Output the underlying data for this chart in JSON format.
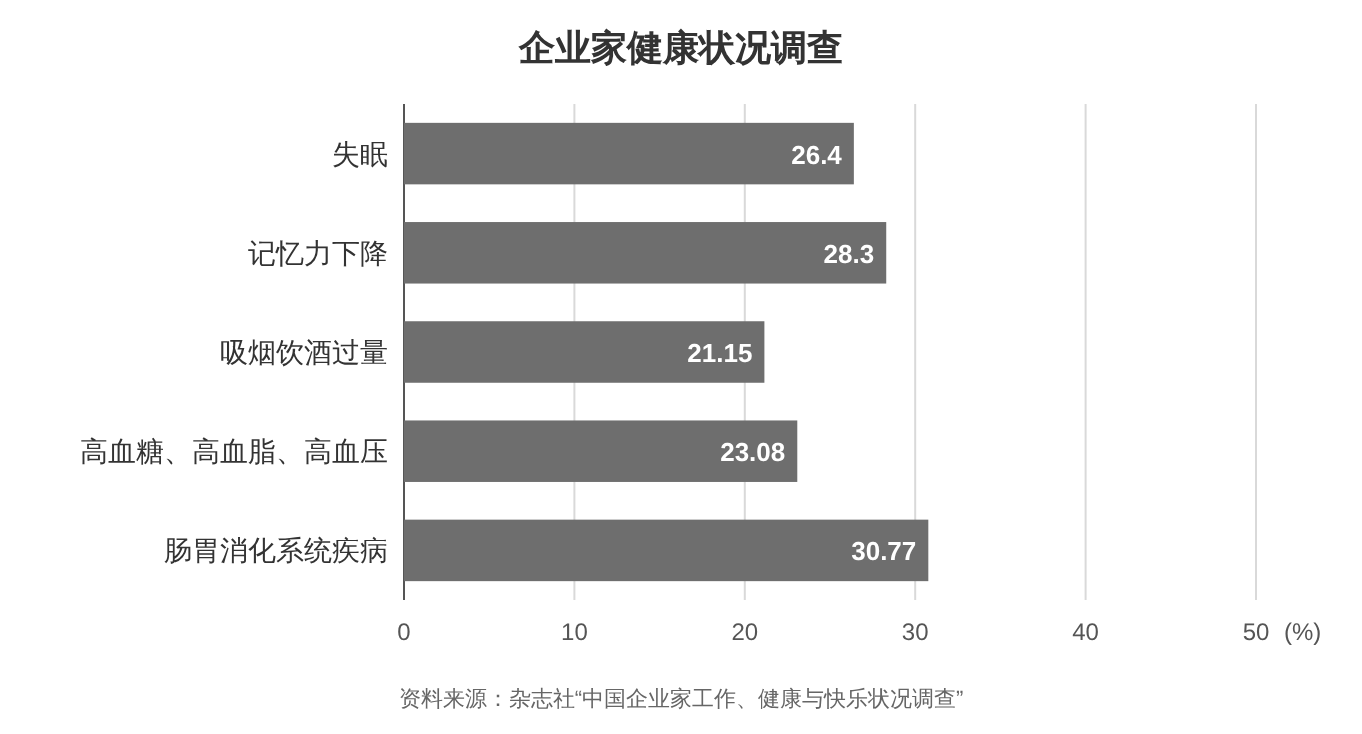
{
  "chart_data": {
    "type": "bar",
    "orientation": "horizontal",
    "title": "企业家健康状况调查",
    "categories": [
      "失眠",
      "记忆力下降",
      "吸烟饮酒过量",
      "高血糖、高血脂、高血压",
      "肠胃消化系统疾病"
    ],
    "values": [
      26.4,
      28.3,
      21.15,
      23.08,
      30.77
    ],
    "color": "#6e6e6e",
    "data_labels": true,
    "xlim": [
      0,
      50
    ],
    "xticks": [
      0,
      10,
      20,
      30,
      40,
      50
    ],
    "xlabel": "(%)",
    "grid": "x",
    "annotations": [
      "资料来源：杂志社“中国企业家工作、健康与快乐状况调查”"
    ]
  }
}
